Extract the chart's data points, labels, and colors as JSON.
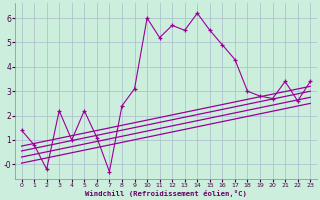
{
  "xlabel": "Windchill (Refroidissement éolien,°C)",
  "bg_color": "#cceedd",
  "grid_color": "#aabbcc",
  "line_color": "#990099",
  "x_main": [
    0,
    1,
    2,
    3,
    4,
    5,
    6,
    7,
    8,
    9,
    10,
    11,
    12,
    13,
    14,
    15,
    16,
    17,
    18,
    19,
    20,
    21,
    22,
    23
  ],
  "y_main": [
    1.4,
    0.8,
    -0.2,
    2.2,
    1.0,
    2.2,
    1.1,
    -0.3,
    2.4,
    3.1,
    6.0,
    5.2,
    5.7,
    5.5,
    6.2,
    5.5,
    4.9,
    4.3,
    3.0,
    2.8,
    2.7,
    3.4,
    2.6,
    3.4
  ],
  "ylim": [
    -0.6,
    6.6
  ],
  "xlim": [
    -0.5,
    23.5
  ],
  "yticks": [
    0,
    1,
    2,
    3,
    4,
    5,
    6
  ],
  "xticks": [
    0,
    1,
    2,
    3,
    4,
    5,
    6,
    7,
    8,
    9,
    10,
    11,
    12,
    13,
    14,
    15,
    16,
    17,
    18,
    19,
    20,
    21,
    22,
    23
  ],
  "reg_lines": [
    {
      "x": [
        0,
        23
      ],
      "y": [
        0.3,
        2.75
      ]
    },
    {
      "x": [
        0,
        23
      ],
      "y": [
        0.55,
        3.0
      ]
    },
    {
      "x": [
        0,
        23
      ],
      "y": [
        0.75,
        3.2
      ]
    },
    {
      "x": [
        0,
        23
      ],
      "y": [
        0.05,
        2.5
      ]
    }
  ]
}
